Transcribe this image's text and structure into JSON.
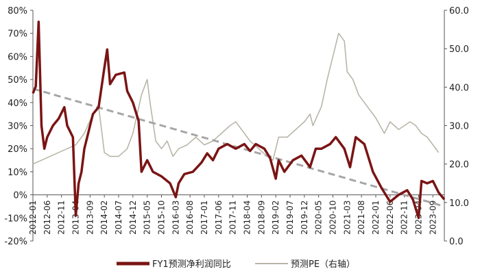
{
  "chart_data": {
    "type": "line",
    "grid": false,
    "legend_position": "bottom",
    "x_tick_labels": [
      "2012-01",
      "2012-06",
      "2012-11",
      "2013-04",
      "2013-09",
      "2014-02",
      "2014-07",
      "2014-12",
      "2015-05",
      "2015-10",
      "2016-03",
      "2016-08",
      "2017-01",
      "2017-06",
      "2017-11",
      "2018-04",
      "2018-09",
      "2019-02",
      "2019-07",
      "2019-12",
      "2020-05",
      "2020-10",
      "2021-03",
      "2021-08",
      "2022-01",
      "2022-06",
      "2022-11",
      "2023-04",
      "2023-09"
    ],
    "y_left": {
      "ticks": [
        "-20%",
        "-10%",
        "0%",
        "10%",
        "20%",
        "30%",
        "40%",
        "50%",
        "60%",
        "70%",
        "80%"
      ],
      "range": [
        -20,
        80
      ]
    },
    "y_right": {
      "ticks": [
        "0.0",
        "10.0",
        "20.0",
        "30.0",
        "40.0",
        "50.0",
        "60.0"
      ],
      "range": [
        0,
        60
      ]
    },
    "series": [
      {
        "name": "FY1预测净利润同比",
        "axis": "left",
        "color": "#7a1414",
        "points": [
          [
            "2012-01",
            44
          ],
          [
            "2012-02",
            47
          ],
          [
            "2012-03",
            75
          ],
          [
            "2012-04",
            30
          ],
          [
            "2012-05",
            20
          ],
          [
            "2012-06",
            25
          ],
          [
            "2012-08",
            30
          ],
          [
            "2012-10",
            33
          ],
          [
            "2012-12",
            38
          ],
          [
            "2013-01",
            30
          ],
          [
            "2013-03",
            25
          ],
          [
            "2013-04",
            -9
          ],
          [
            "2013-05",
            5
          ],
          [
            "2013-06",
            10
          ],
          [
            "2013-07",
            20
          ],
          [
            "2013-09",
            30
          ],
          [
            "2013-10",
            35
          ],
          [
            "2013-12",
            38
          ],
          [
            "2014-02",
            55
          ],
          [
            "2014-03",
            63
          ],
          [
            "2014-04",
            48
          ],
          [
            "2014-06",
            52
          ],
          [
            "2014-09",
            53
          ],
          [
            "2014-10",
            45
          ],
          [
            "2014-12",
            40
          ],
          [
            "2015-02",
            32
          ],
          [
            "2015-03",
            10
          ],
          [
            "2015-05",
            15
          ],
          [
            "2015-07",
            10
          ],
          [
            "2015-10",
            8
          ],
          [
            "2016-01",
            5
          ],
          [
            "2016-03",
            -1
          ],
          [
            "2016-04",
            5
          ],
          [
            "2016-06",
            9
          ],
          [
            "2016-09",
            10
          ],
          [
            "2016-12",
            14
          ],
          [
            "2017-02",
            18
          ],
          [
            "2017-04",
            15
          ],
          [
            "2017-06",
            20
          ],
          [
            "2017-09",
            22
          ],
          [
            "2017-12",
            20
          ],
          [
            "2018-03",
            22
          ],
          [
            "2018-05",
            19
          ],
          [
            "2018-07",
            22
          ],
          [
            "2018-10",
            20
          ],
          [
            "2018-12",
            16
          ],
          [
            "2019-02",
            7
          ],
          [
            "2019-03",
            15
          ],
          [
            "2019-05",
            10
          ],
          [
            "2019-08",
            15
          ],
          [
            "2019-11",
            17
          ],
          [
            "2020-02",
            12
          ],
          [
            "2020-04",
            20
          ],
          [
            "2020-06",
            20
          ],
          [
            "2020-09",
            22
          ],
          [
            "2020-11",
            25
          ],
          [
            "2021-02",
            20
          ],
          [
            "2021-04",
            12
          ],
          [
            "2021-06",
            25
          ],
          [
            "2021-09",
            22
          ],
          [
            "2021-12",
            10
          ],
          [
            "2022-03",
            3
          ],
          [
            "2022-06",
            -3
          ],
          [
            "2022-09",
            0
          ],
          [
            "2022-12",
            2
          ],
          [
            "2023-02",
            -2
          ],
          [
            "2023-04",
            -10
          ],
          [
            "2023-05",
            6
          ],
          [
            "2023-07",
            5
          ],
          [
            "2023-09",
            6
          ],
          [
            "2023-11",
            1
          ],
          [
            "2024-01",
            -2
          ]
        ]
      },
      {
        "name": "预测PE（右轴）",
        "axis": "right",
        "color": "#b8b5a8",
        "points": [
          [
            "2012-01",
            20
          ],
          [
            "2012-04",
            21
          ],
          [
            "2012-07",
            22
          ],
          [
            "2012-10",
            23
          ],
          [
            "2013-01",
            24
          ],
          [
            "2013-04",
            25
          ],
          [
            "2013-07",
            28
          ],
          [
            "2013-10",
            33
          ],
          [
            "2013-12",
            35
          ],
          [
            "2014-02",
            23
          ],
          [
            "2014-04",
            22
          ],
          [
            "2014-07",
            22
          ],
          [
            "2014-10",
            24
          ],
          [
            "2014-12",
            28
          ],
          [
            "2015-03",
            38
          ],
          [
            "2015-05",
            42
          ],
          [
            "2015-06",
            36
          ],
          [
            "2015-08",
            26
          ],
          [
            "2015-10",
            24
          ],
          [
            "2015-12",
            26
          ],
          [
            "2016-02",
            22
          ],
          [
            "2016-04",
            24
          ],
          [
            "2016-07",
            25
          ],
          [
            "2016-10",
            27
          ],
          [
            "2017-01",
            25
          ],
          [
            "2017-04",
            26
          ],
          [
            "2017-07",
            28
          ],
          [
            "2017-10",
            30
          ],
          [
            "2017-12",
            31
          ],
          [
            "2018-02",
            29
          ],
          [
            "2018-05",
            26
          ],
          [
            "2018-08",
            24
          ],
          [
            "2018-11",
            22
          ],
          [
            "2019-01",
            21
          ],
          [
            "2019-03",
            27
          ],
          [
            "2019-06",
            27
          ],
          [
            "2019-09",
            29
          ],
          [
            "2019-12",
            31
          ],
          [
            "2020-02",
            33
          ],
          [
            "2020-03",
            30
          ],
          [
            "2020-06",
            35
          ],
          [
            "2020-08",
            42
          ],
          [
            "2020-10",
            48
          ],
          [
            "2020-12",
            54
          ],
          [
            "2021-02",
            52
          ],
          [
            "2021-03",
            44
          ],
          [
            "2021-05",
            42
          ],
          [
            "2021-07",
            38
          ],
          [
            "2021-09",
            36
          ],
          [
            "2021-11",
            34
          ],
          [
            "2022-01",
            32
          ],
          [
            "2022-04",
            28
          ],
          [
            "2022-06",
            31
          ],
          [
            "2022-09",
            29
          ],
          [
            "2022-11",
            30
          ],
          [
            "2023-01",
            31
          ],
          [
            "2023-03",
            30
          ],
          [
            "2023-05",
            28
          ],
          [
            "2023-07",
            27
          ],
          [
            "2023-09",
            25
          ],
          [
            "2023-11",
            23
          ]
        ]
      }
    ],
    "trendline": {
      "style": "dashed",
      "color": "#a6a6a6",
      "start": [
        "2012-01",
        46
      ],
      "end": [
        "2024-01",
        -5
      ]
    }
  }
}
